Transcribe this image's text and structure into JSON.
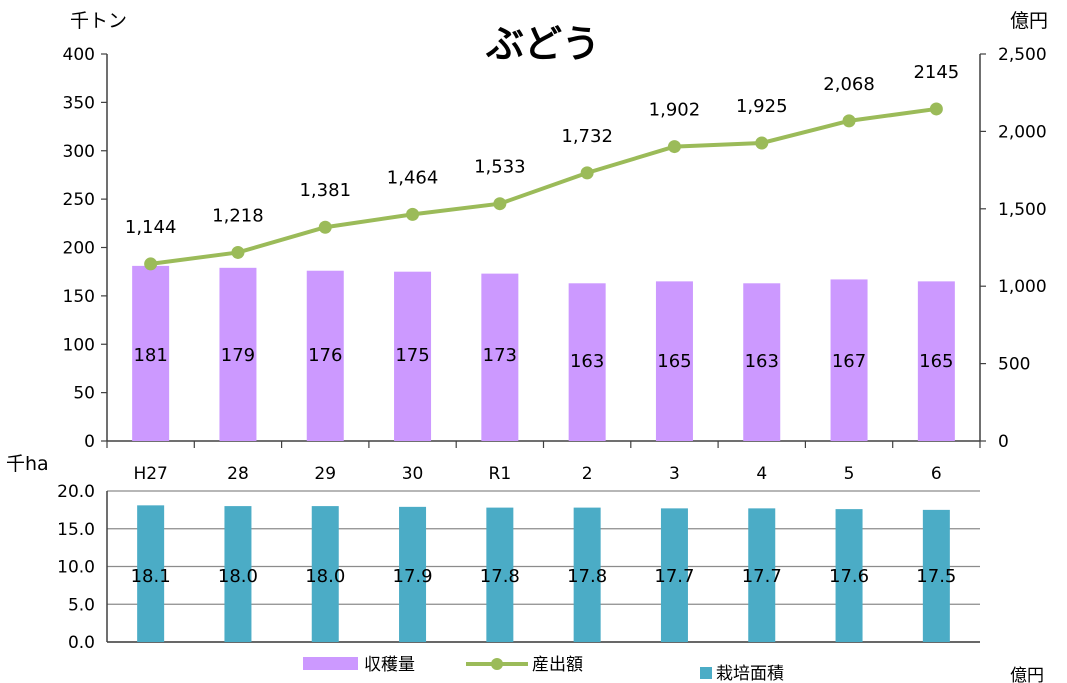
{
  "chart_data": [
    {
      "type": "bar",
      "title": "ぶどう",
      "categories": [
        "H27",
        "28",
        "29",
        "30",
        "R1",
        "2",
        "3",
        "4",
        "5",
        "6"
      ],
      "left_axis": {
        "unit": "千トン",
        "ylim": [
          0,
          400
        ],
        "ticks": [
          "0",
          "50",
          "100",
          "150",
          "200",
          "250",
          "300",
          "350",
          "400"
        ]
      },
      "right_axis": {
        "unit": "億円",
        "ylim": [
          0,
          2500
        ],
        "ticks": [
          "0",
          "500",
          "1,000",
          "1,500",
          "2,000",
          "2,500"
        ]
      },
      "series": [
        {
          "name": "収穫量",
          "type": "bar",
          "axis": "left",
          "color": "#cc99ff",
          "values": [
            181,
            179,
            176,
            175,
            173,
            163,
            165,
            163,
            167,
            165
          ],
          "labels": [
            "181",
            "179",
            "176",
            "175",
            "173",
            "163",
            "165",
            "163",
            "167",
            "165"
          ]
        },
        {
          "name": "産出額",
          "type": "line",
          "axis": "right",
          "color": "#9bbb59",
          "values": [
            1144,
            1218,
            1381,
            1464,
            1533,
            1732,
            1902,
            1925,
            2068,
            2145
          ],
          "labels": [
            "1,144",
            "1,218",
            "1,381",
            "1,464",
            "1,533",
            "1,732",
            "1,902",
            "1,925",
            "2,068",
            "2145"
          ]
        }
      ],
      "grid": false
    },
    {
      "type": "bar",
      "categories": [
        "H27",
        "28",
        "29",
        "30",
        "R1",
        "2",
        "3",
        "4",
        "5",
        "6"
      ],
      "left_axis": {
        "unit": "千ha",
        "ylim": [
          0,
          20
        ],
        "ticks": [
          "0.0",
          "5.0",
          "10.0",
          "15.0",
          "20.0"
        ]
      },
      "series": [
        {
          "name": "栽培面積",
          "type": "bar",
          "axis": "left",
          "color": "#4bacc6",
          "values": [
            18.1,
            18.0,
            18.0,
            17.9,
            17.8,
            17.8,
            17.7,
            17.7,
            17.6,
            17.5
          ],
          "labels": [
            "18.1",
            "18.0",
            "18.0",
            "17.9",
            "17.8",
            "17.8",
            "17.7",
            "17.7",
            "17.6",
            "17.5"
          ]
        }
      ],
      "grid": true
    }
  ],
  "legend": [
    {
      "label": "収穫量",
      "color": "#cc99ff",
      "marker": "rect"
    },
    {
      "label": "産出額",
      "color": "#9bbb59",
      "marker": "line"
    },
    {
      "label": "栽培面積",
      "color": "#4bacc6",
      "marker": "square"
    }
  ],
  "footer_fragment": "億円"
}
